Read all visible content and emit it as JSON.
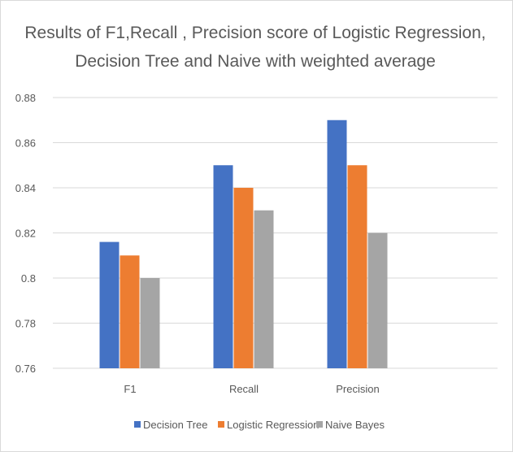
{
  "chart_data": {
    "type": "bar",
    "title_lines": [
      "Results of F1,Recall , Precision score of Logistic Regression,",
      "Decision Tree and Naive with weighted average"
    ],
    "categories": [
      "F1",
      "Recall",
      "Precision"
    ],
    "series": [
      {
        "name": "Decision Tree",
        "values": [
          0.816,
          0.85,
          0.87
        ],
        "color": "#4472c4"
      },
      {
        "name": "Logistic Regression",
        "values": [
          0.81,
          0.84,
          0.85
        ],
        "color": "#ed7d31"
      },
      {
        "name": "Naive Bayes",
        "values": [
          0.8,
          0.83,
          0.82
        ],
        "color": "#a5a5a5"
      }
    ],
    "yticks": [
      "0.76",
      "0.78",
      "0.8",
      "0.82",
      "0.84",
      "0.86",
      "0.88"
    ],
    "ylim": [
      0.76,
      0.88
    ],
    "grid": true,
    "legend_position": "bottom"
  }
}
